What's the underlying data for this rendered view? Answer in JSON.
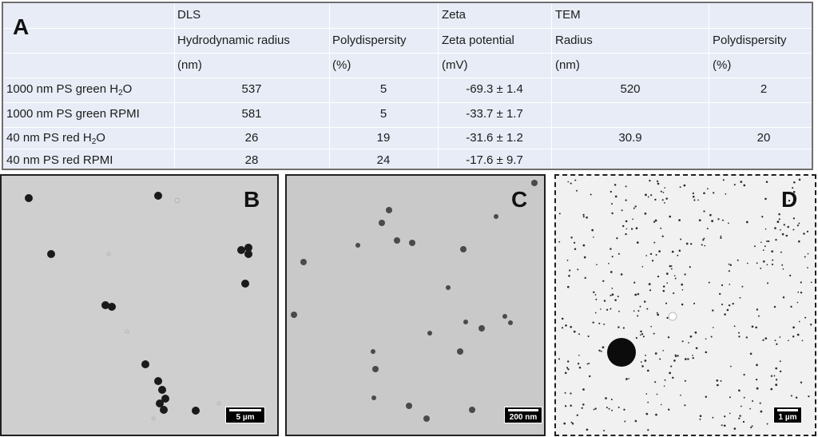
{
  "panels": {
    "a": "A",
    "b": "B",
    "c": "C",
    "d": "D"
  },
  "table": {
    "group_headers": {
      "dls": "DLS",
      "zeta": "Zeta",
      "tem": "TEM"
    },
    "col_headers": {
      "hydro": "Hydrodynamic radius",
      "poly_dls": "Polydispersity",
      "zeta": "Zeta potential",
      "radius": "Radius",
      "poly_tem": "Polydispersity"
    },
    "units": {
      "hydro": "(nm)",
      "poly_dls": "(%)",
      "zeta": "(mV)",
      "radius": "(nm)",
      "poly_tem": "(%)"
    },
    "rows": [
      {
        "label_pre": "1000 nm PS green H",
        "label_sub": "2",
        "label_post": "O",
        "hydro": "537",
        "poly_dls": "5",
        "zeta": "-69.3 ± 1.4",
        "radius": "520",
        "poly_tem": "2"
      },
      {
        "label_pre": "1000 nm PS green RPMI",
        "label_sub": "",
        "label_post": "",
        "hydro": "581",
        "poly_dls": "5",
        "zeta": "-33.7 ± 1.7",
        "radius": "",
        "poly_tem": ""
      },
      {
        "label_pre": "40 nm PS red H",
        "label_sub": "2",
        "label_post": "O",
        "hydro": "26",
        "poly_dls": "19",
        "zeta": "-31.6 ± 1.2",
        "radius": "30.9",
        "poly_tem": "20"
      },
      {
        "label_pre": "40 nm PS red RPMI",
        "label_sub": "",
        "label_post": "",
        "hydro": "28",
        "poly_dls": "24",
        "zeta": "-17.6 ± 9.7",
        "radius": "",
        "poly_tem": ""
      }
    ]
  },
  "scale_bars": {
    "b": "5 µm",
    "c": "200 nm",
    "d": "1 µm"
  },
  "colors": {
    "table_bg": "#e7ecf6",
    "particle": "#1a1a1a",
    "particle_c": "#4a4a4a"
  }
}
